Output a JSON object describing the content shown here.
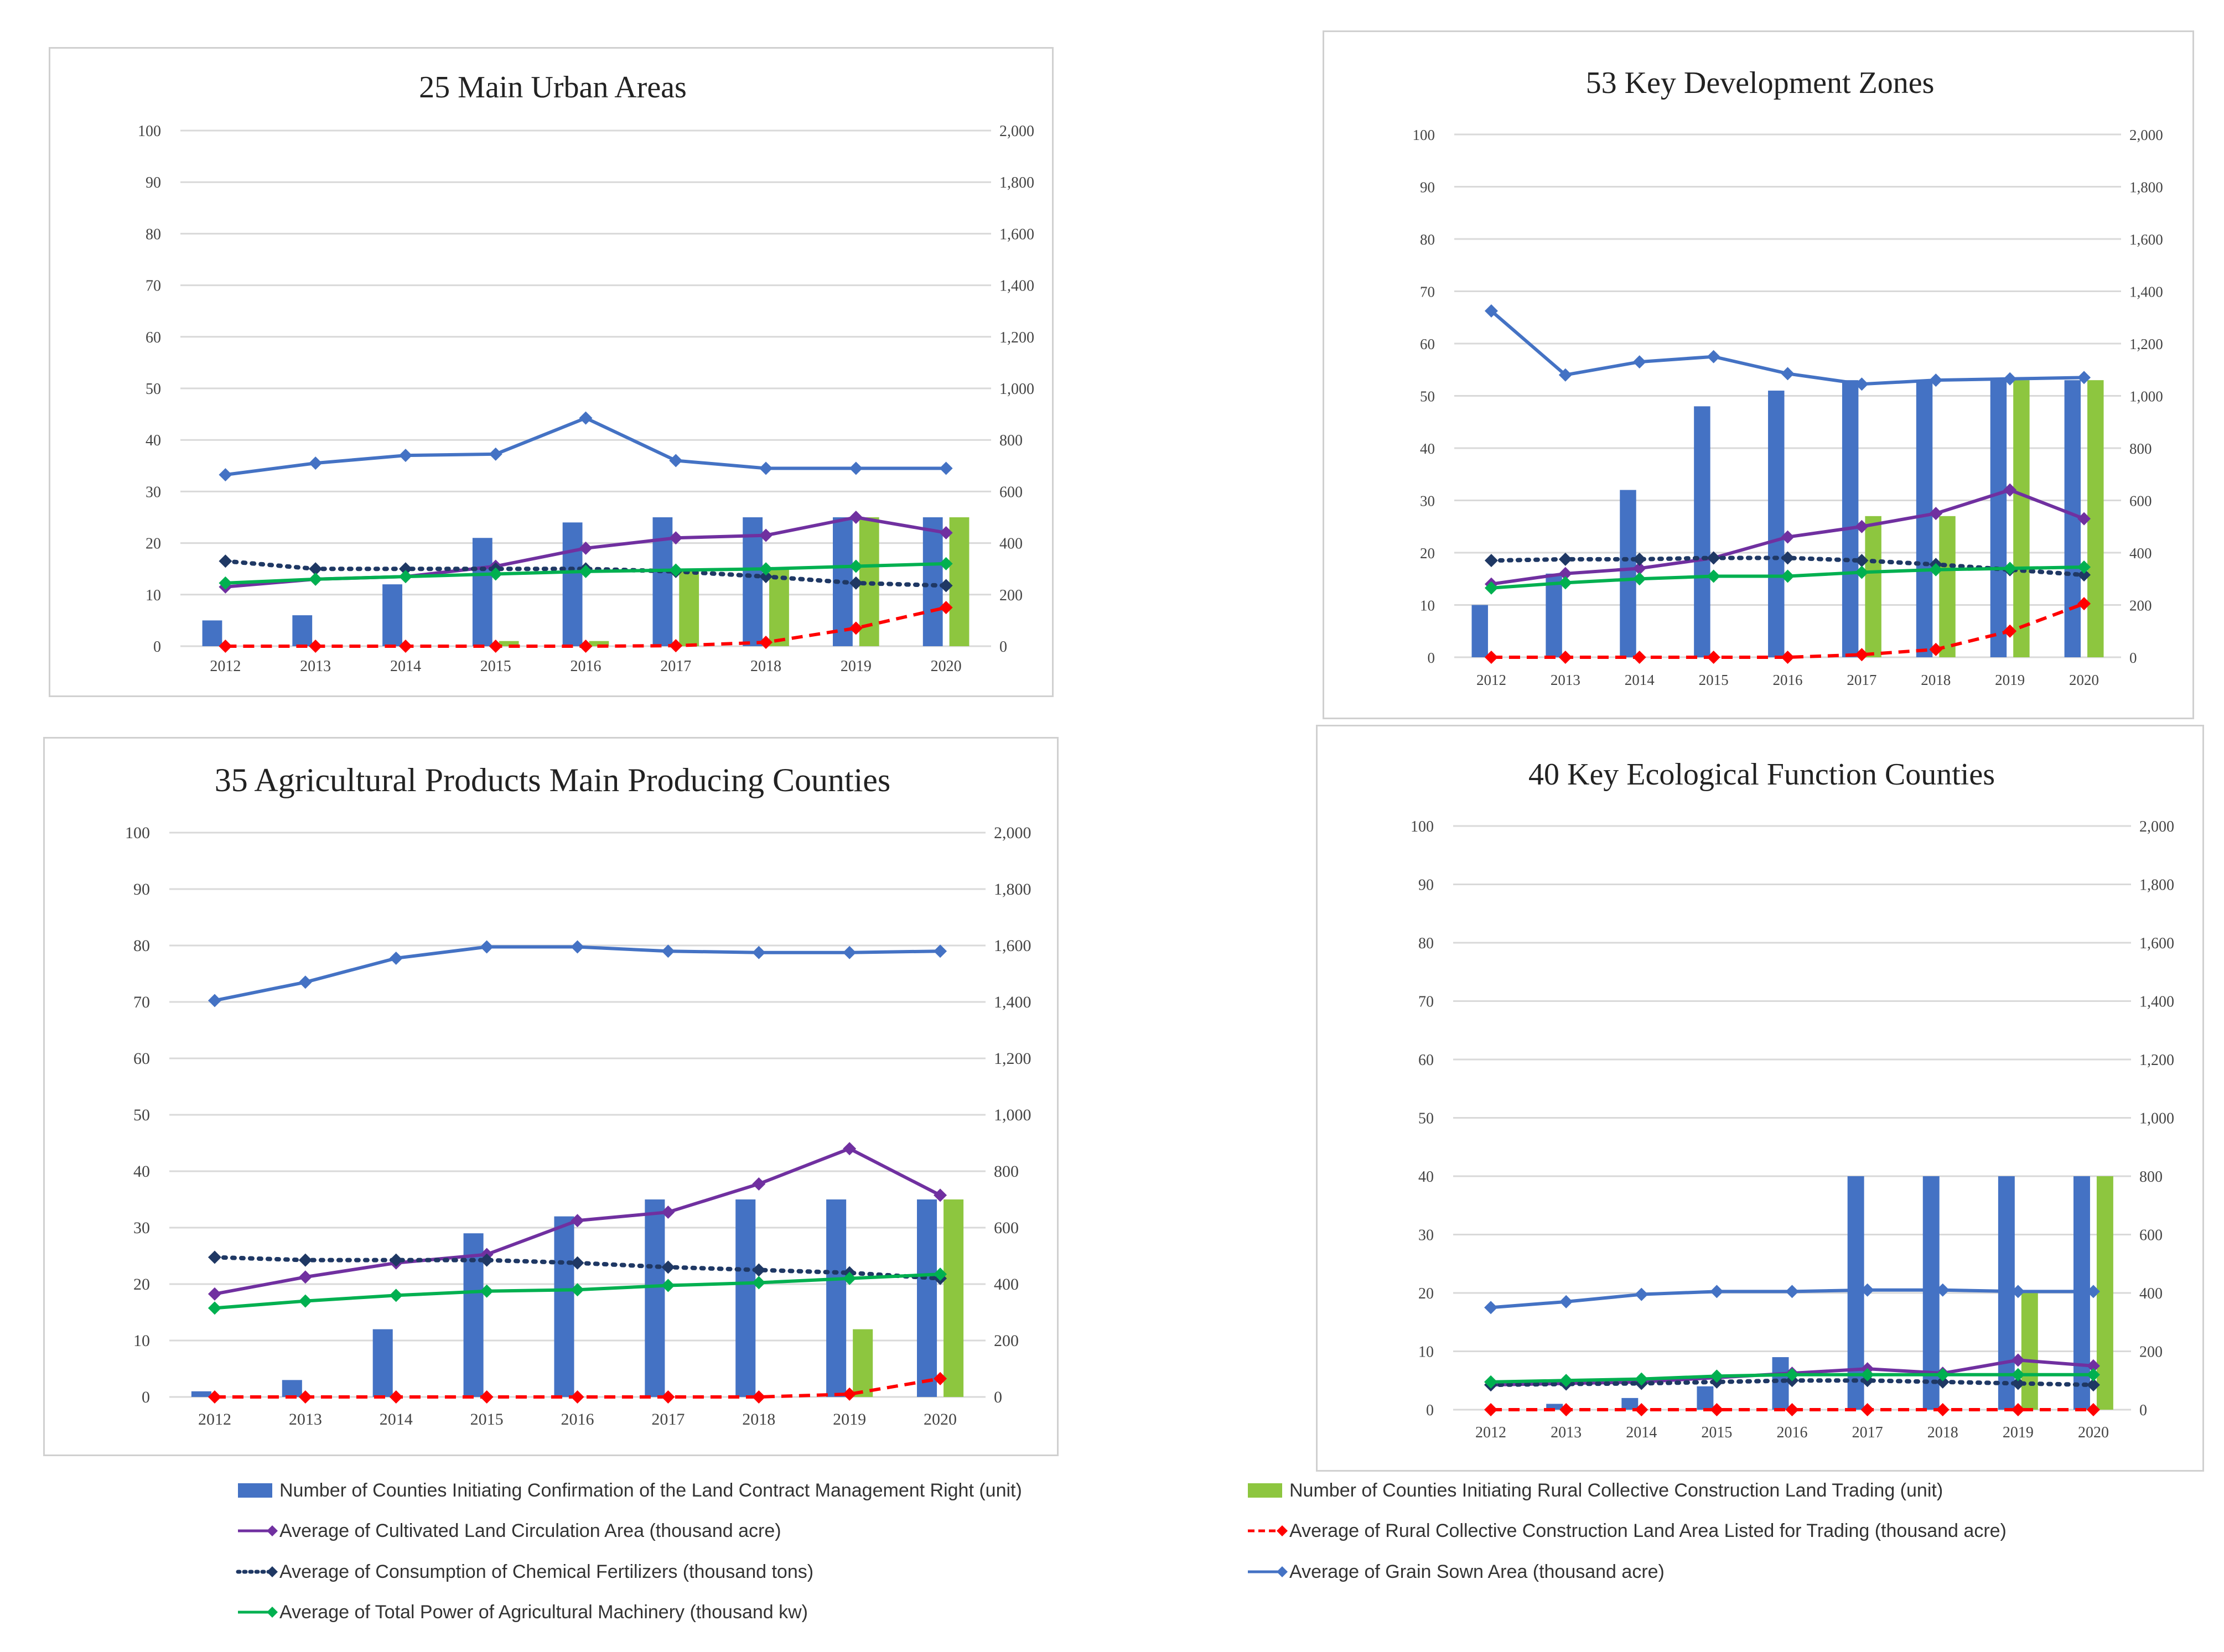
{
  "colors": {
    "contract_bars": "#4472C4",
    "trading_bars": "#8DC63F",
    "circulation": "#7030A0",
    "rural_land": "#FF0000",
    "fertilizer": "#1F3864",
    "grain": "#4472C4",
    "machinery": "#00B050",
    "gridline": "#D9D9D9"
  },
  "legend": [
    {
      "key": "contract",
      "label": "Number of Counties Initiating Confirmation of the Land Contract Management Right (unit)",
      "style": "bar",
      "color": "#4472C4"
    },
    {
      "key": "trading",
      "label": "Number of Counties Initiating Rural Collective Construction Land Trading (unit)",
      "style": "bar",
      "color": "#8DC63F"
    },
    {
      "key": "circulation",
      "label": "Average of Cultivated Land Circulation Area (thousand acre)",
      "style": "line-diamond",
      "color": "#7030A0"
    },
    {
      "key": "rural_land",
      "label": "Average of Rural Collective Construction Land Area Listed for Trading  (thousand acre)",
      "style": "dashed-diamond",
      "color": "#FF0000"
    },
    {
      "key": "fertilizer",
      "label": "Average of Consumption of Chemical Fertilizers (thousand tons)",
      "style": "dotted-diamond",
      "color": "#1F3864"
    },
    {
      "key": "grain",
      "label": "Average of Grain Sown Area (thousand acre)",
      "style": "line-diamond",
      "color": "#4472C4"
    },
    {
      "key": "machinery",
      "label": "Average of Total Power of Agricultural Machinery (thousand kw)",
      "style": "line-diamond",
      "color": "#00B050"
    }
  ],
  "chart_data": [
    {
      "type": "bar",
      "title": "25 Main Urban Areas",
      "categories": [
        "2012",
        "2013",
        "2014",
        "2015",
        "2016",
        "2017",
        "2018",
        "2019",
        "2020"
      ],
      "y_left": {
        "min": 0,
        "max": 100,
        "ticks": [
          "0",
          "10",
          "20",
          "30",
          "40",
          "50",
          "60",
          "70",
          "80",
          "90",
          "100"
        ]
      },
      "y_right": {
        "min": 0,
        "max": 2000,
        "ticks": [
          "0",
          "200",
          "400",
          "600",
          "800",
          "1,000",
          "1,200",
          "1,400",
          "1,600",
          "1,800",
          "2,000"
        ]
      },
      "grid": true,
      "series": [
        {
          "key": "contract",
          "chart": "bar",
          "axis": "left",
          "values": [
            5,
            6,
            12,
            21,
            24,
            25,
            25,
            25,
            25
          ]
        },
        {
          "key": "trading",
          "chart": "bar",
          "axis": "left",
          "values": [
            0,
            0,
            0,
            1,
            1,
            15,
            15,
            25,
            25
          ]
        },
        {
          "key": "circulation",
          "chart": "line",
          "axis": "right",
          "values": [
            230,
            260,
            270,
            310,
            380,
            420,
            430,
            500,
            440
          ]
        },
        {
          "key": "rural_land",
          "chart": "line",
          "axis": "right",
          "values": [
            0,
            0,
            0,
            0,
            0,
            2,
            15,
            70,
            150
          ]
        },
        {
          "key": "fertilizer",
          "chart": "line",
          "axis": "right",
          "values": [
            330,
            300,
            300,
            300,
            300,
            290,
            270,
            245,
            235
          ]
        },
        {
          "key": "grain",
          "chart": "line",
          "axis": "right",
          "values": [
            665,
            710,
            740,
            745,
            885,
            720,
            690,
            690,
            690
          ]
        },
        {
          "key": "machinery",
          "chart": "line",
          "axis": "right",
          "values": [
            245,
            260,
            270,
            280,
            290,
            295,
            300,
            310,
            320
          ]
        }
      ]
    },
    {
      "type": "bar",
      "title": "53 Key Development Zones",
      "categories": [
        "2012",
        "2013",
        "2014",
        "2015",
        "2016",
        "2017",
        "2018",
        "2019",
        "2020"
      ],
      "y_left": {
        "min": 0,
        "max": 100,
        "ticks": [
          "0",
          "10",
          "20",
          "30",
          "40",
          "50",
          "60",
          "70",
          "80",
          "90",
          "100"
        ]
      },
      "y_right": {
        "min": 0,
        "max": 2000,
        "ticks": [
          "0",
          "200",
          "400",
          "600",
          "800",
          "1,000",
          "1,200",
          "1,400",
          "1,600",
          "1,800",
          "2,000"
        ]
      },
      "grid": true,
      "series": [
        {
          "key": "contract",
          "chart": "bar",
          "axis": "left",
          "values": [
            10,
            16,
            32,
            48,
            51,
            53,
            53,
            53,
            53
          ]
        },
        {
          "key": "trading",
          "chart": "bar",
          "axis": "left",
          "values": [
            0,
            0,
            0,
            0,
            0,
            27,
            27,
            53,
            53
          ]
        },
        {
          "key": "circulation",
          "chart": "line",
          "axis": "right",
          "values": [
            280,
            320,
            340,
            380,
            460,
            500,
            550,
            640,
            530
          ]
        },
        {
          "key": "rural_land",
          "chart": "line",
          "axis": "right",
          "values": [
            0,
            0,
            0,
            0,
            0,
            10,
            30,
            100,
            205
          ]
        },
        {
          "key": "fertilizer",
          "chart": "line",
          "axis": "right",
          "values": [
            370,
            375,
            375,
            380,
            380,
            370,
            355,
            335,
            315
          ]
        },
        {
          "key": "grain",
          "chart": "line",
          "axis": "right",
          "values": [
            1325,
            1080,
            1130,
            1150,
            1085,
            1045,
            1060,
            1065,
            1070
          ]
        },
        {
          "key": "machinery",
          "chart": "line",
          "axis": "right",
          "values": [
            265,
            285,
            300,
            310,
            310,
            325,
            335,
            340,
            345
          ]
        }
      ]
    },
    {
      "type": "bar",
      "title": "35 Agricultural Products Main Producing Counties",
      "categories": [
        "2012",
        "2013",
        "2014",
        "2015",
        "2016",
        "2017",
        "2018",
        "2019",
        "2020"
      ],
      "y_left": {
        "min": 0,
        "max": 100,
        "ticks": [
          "0",
          "10",
          "20",
          "30",
          "40",
          "50",
          "60",
          "70",
          "80",
          "90",
          "100"
        ]
      },
      "y_right": {
        "min": 0,
        "max": 2000,
        "ticks": [
          "0",
          "200",
          "400",
          "600",
          "800",
          "1,000",
          "1,200",
          "1,400",
          "1,600",
          "1,800",
          "2,000"
        ]
      },
      "grid": true,
      "series": [
        {
          "key": "contract",
          "chart": "bar",
          "axis": "left",
          "values": [
            1,
            3,
            12,
            29,
            32,
            35,
            35,
            35,
            35
          ]
        },
        {
          "key": "trading",
          "chart": "bar",
          "axis": "left",
          "values": [
            0,
            0,
            0,
            0,
            0,
            0,
            0,
            12,
            35
          ]
        },
        {
          "key": "circulation",
          "chart": "line",
          "axis": "right",
          "values": [
            365,
            425,
            475,
            505,
            625,
            655,
            755,
            880,
            715
          ]
        },
        {
          "key": "rural_land",
          "chart": "line",
          "axis": "right",
          "values": [
            0,
            0,
            0,
            0,
            0,
            0,
            0,
            10,
            65
          ]
        },
        {
          "key": "fertilizer",
          "chart": "line",
          "axis": "right",
          "values": [
            495,
            485,
            485,
            485,
            475,
            460,
            450,
            440,
            420
          ]
        },
        {
          "key": "grain",
          "chart": "line",
          "axis": "right",
          "values": [
            1405,
            1470,
            1555,
            1595,
            1595,
            1580,
            1575,
            1575,
            1580
          ]
        },
        {
          "key": "machinery",
          "chart": "line",
          "axis": "right",
          "values": [
            315,
            340,
            360,
            375,
            380,
            395,
            405,
            420,
            435
          ]
        }
      ]
    },
    {
      "type": "bar",
      "title": "40 Key Ecological Function  Counties",
      "categories": [
        "2012",
        "2013",
        "2014",
        "2015",
        "2016",
        "2017",
        "2018",
        "2019",
        "2020"
      ],
      "y_left": {
        "min": 0,
        "max": 100,
        "ticks": [
          "0",
          "10",
          "20",
          "30",
          "40",
          "50",
          "60",
          "70",
          "80",
          "90",
          "100"
        ]
      },
      "y_right": {
        "min": 0,
        "max": 2000,
        "ticks": [
          "0",
          "200",
          "400",
          "600",
          "800",
          "1,000",
          "1,200",
          "1,400",
          "1,600",
          "1,800",
          "2,000"
        ]
      },
      "grid": true,
      "series": [
        {
          "key": "contract",
          "chart": "bar",
          "axis": "left",
          "values": [
            0,
            1,
            2,
            4,
            9,
            40,
            40,
            40,
            40
          ]
        },
        {
          "key": "trading",
          "chart": "bar",
          "axis": "left",
          "values": [
            0,
            0,
            0,
            0,
            0,
            0,
            0,
            20,
            40
          ]
        },
        {
          "key": "circulation",
          "chart": "line",
          "axis": "right",
          "values": [
            85,
            90,
            95,
            110,
            125,
            140,
            125,
            170,
            150
          ]
        },
        {
          "key": "rural_land",
          "chart": "line",
          "axis": "right",
          "values": [
            0,
            0,
            0,
            0,
            0,
            0,
            0,
            0,
            0
          ]
        },
        {
          "key": "fertilizer",
          "chart": "line",
          "axis": "right",
          "values": [
            85,
            88,
            90,
            95,
            100,
            100,
            95,
            90,
            85
          ]
        },
        {
          "key": "grain",
          "chart": "line",
          "axis": "right",
          "values": [
            350,
            370,
            395,
            405,
            405,
            410,
            410,
            405,
            405
          ]
        },
        {
          "key": "machinery",
          "chart": "line",
          "axis": "right",
          "values": [
            95,
            100,
            105,
            115,
            120,
            120,
            120,
            120,
            120
          ]
        }
      ]
    }
  ]
}
